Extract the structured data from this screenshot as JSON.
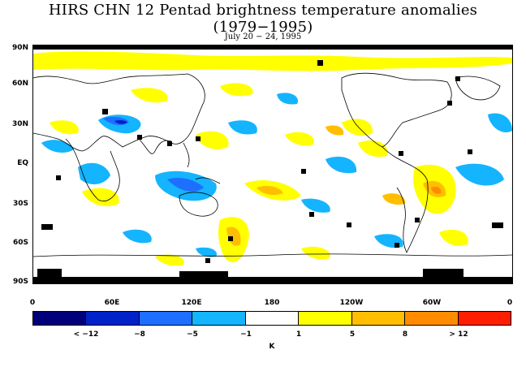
{
  "title": "HIRS CHN 12 Pentad brightness temperature anomalies (1979−1995)",
  "subtitle": "July 20 − 24, 1995",
  "lat_labels": [
    "90N",
    "60N",
    "30N",
    "EQ",
    "30S",
    "60S",
    "90S"
  ],
  "lon_labels": [
    "0",
    "60E",
    "120E",
    "180",
    "120W",
    "60W",
    "0"
  ],
  "colorbar": {
    "colors": [
      "#00007a",
      "#0022c8",
      "#1e6eff",
      "#14b4ff",
      "#ffffff",
      "#ffff00",
      "#ffbe00",
      "#ff8c00",
      "#ff1e00"
    ],
    "tick_labels": [
      "< −12",
      "−8",
      "−5",
      "−1",
      "1",
      "5",
      "8",
      "> 12"
    ],
    "unit": "K"
  }
}
